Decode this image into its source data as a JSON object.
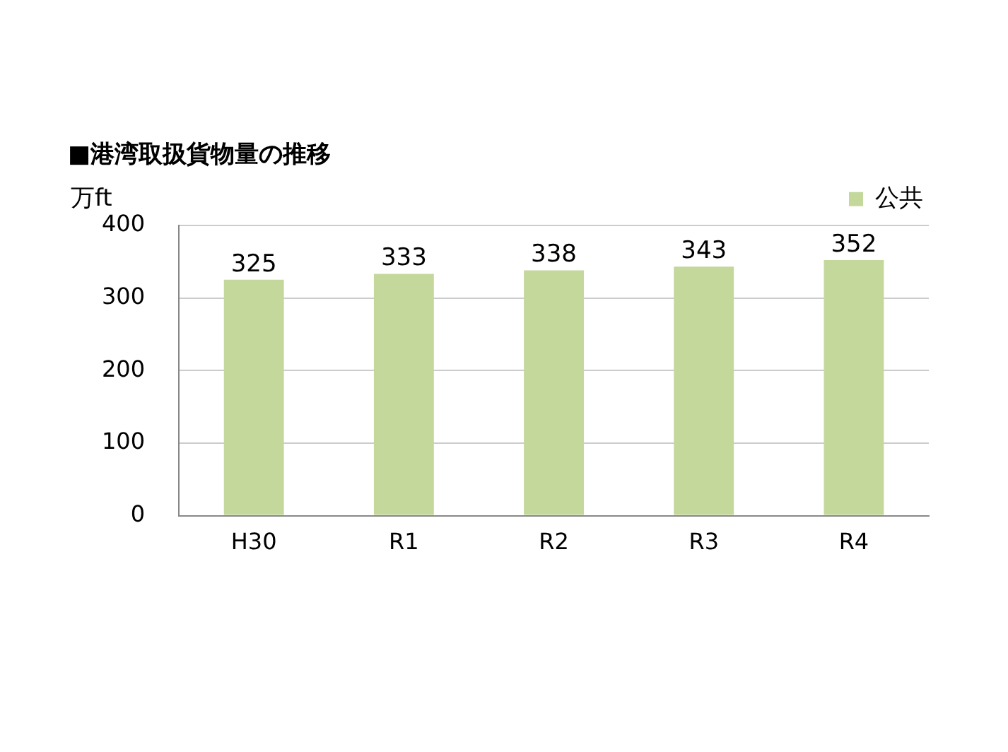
{
  "chart_data": {
    "type": "bar",
    "title": "■港湾取扱貨物量の推移",
    "ylabel": "万ft",
    "categories": [
      "H30",
      "R1",
      "R2",
      "R3",
      "R4"
    ],
    "series": [
      {
        "name": "公共",
        "color": "#c4d89c",
        "values": [
          325,
          333,
          338,
          343,
          352
        ]
      }
    ],
    "ylim": [
      0,
      400
    ],
    "yticks": [
      0,
      100,
      200,
      300,
      400
    ],
    "grid": "y",
    "legend": "top right",
    "data_labels": true
  }
}
